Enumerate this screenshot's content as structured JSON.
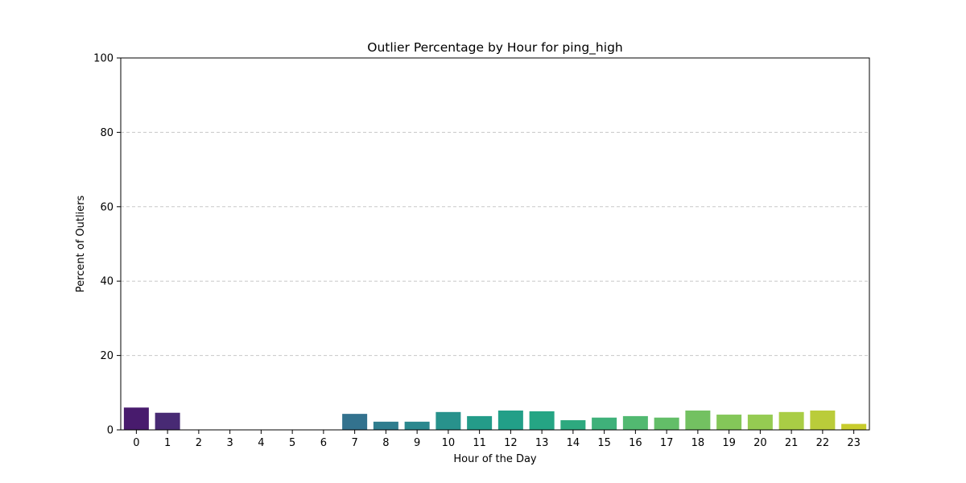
{
  "chart_data": {
    "type": "bar",
    "title": "Outlier Percentage by Hour for ping_high",
    "xlabel": "Hour of the Day",
    "ylabel": "Percent of Outliers",
    "categories": [
      "0",
      "1",
      "2",
      "3",
      "4",
      "5",
      "6",
      "7",
      "8",
      "9",
      "10",
      "11",
      "12",
      "13",
      "14",
      "15",
      "16",
      "17",
      "18",
      "19",
      "20",
      "21",
      "22",
      "23"
    ],
    "values": [
      6.0,
      4.6,
      0,
      0,
      0,
      0,
      0,
      4.3,
      2.2,
      2.2,
      4.8,
      3.7,
      5.2,
      5.0,
      2.6,
      3.3,
      3.7,
      3.3,
      5.2,
      4.1,
      4.1,
      4.8,
      5.2,
      1.6
    ],
    "ylim": [
      0,
      100
    ],
    "yticks": [
      0,
      20,
      40,
      60,
      80,
      100
    ],
    "grid": "y-dashed",
    "colors": [
      "#481b6d",
      "#482a74",
      "#46377a",
      "#43447e",
      "#3f5082",
      "#3a5b87",
      "#36678c",
      "#33728e",
      "#2f7d8e",
      "#2b888e",
      "#28928c",
      "#249c89",
      "#229f88",
      "#25a584",
      "#2ea97f",
      "#3fb17a",
      "#52b971",
      "#63be68",
      "#73c161",
      "#84c759",
      "#95cb52",
      "#a9cd45",
      "#bacc3a",
      "#c8cc2d"
    ]
  }
}
